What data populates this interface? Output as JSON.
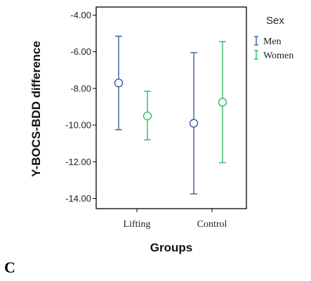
{
  "panel_label": "C",
  "chart_data": {
    "type": "errorbar",
    "xlabel": "Groups",
    "ylabel": "Y-BOCS-BDD difference",
    "categories": [
      "Lifting",
      "Control"
    ],
    "ylim": [
      -14.5,
      -3.5
    ],
    "yticks": [
      -4,
      -6,
      -8,
      -10,
      -12,
      -14
    ],
    "ytick_labels": [
      "-4.00",
      "-6.00",
      "-8.00",
      "-10.00",
      "-12.00",
      "-14.00"
    ],
    "grid": false,
    "legend": {
      "title": "Sex",
      "placement": "right"
    },
    "series": [
      {
        "name": "Men",
        "color": "#3d5aa8",
        "means": [
          -7.7,
          -9.9
        ],
        "lower": [
          -10.25,
          -13.75
        ],
        "upper": [
          -5.15,
          -6.05
        ]
      },
      {
        "name": "Women",
        "color": "#2dbb6a",
        "means": [
          -9.5,
          -8.75
        ],
        "lower": [
          -10.8,
          -12.05
        ],
        "upper": [
          -8.15,
          -5.45
        ]
      }
    ]
  }
}
